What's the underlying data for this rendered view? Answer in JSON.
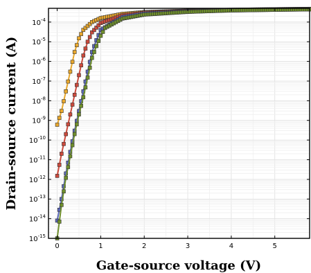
{
  "chart_data": {
    "type": "line",
    "title": "",
    "xlabel": "Gate-source voltage (V)",
    "ylabel": "Drain-source current (A)",
    "xlim": [
      -0.2,
      5.8
    ],
    "ylim": [
      1e-15,
      0.0005
    ],
    "yscale": "log",
    "grid": true,
    "legend": "none",
    "x_ticks": [
      "0",
      "1",
      "2",
      "3",
      "4",
      "5"
    ],
    "y_ticks": [
      {
        "base": "10",
        "exp": "-15"
      },
      {
        "base": "10",
        "exp": "-14"
      },
      {
        "base": "10",
        "exp": "-13"
      },
      {
        "base": "10",
        "exp": "-12"
      },
      {
        "base": "10",
        "exp": "-11"
      },
      {
        "base": "10",
        "exp": "-10"
      },
      {
        "base": "10",
        "exp": "-9"
      },
      {
        "base": "10",
        "exp": "-8"
      },
      {
        "base": "10",
        "exp": "-7"
      },
      {
        "base": "10",
        "exp": "-6"
      },
      {
        "base": "10",
        "exp": "-5"
      },
      {
        "base": "10",
        "exp": "-4"
      }
    ],
    "series": [
      {
        "color": "#e8a72c",
        "x": [
          0.0,
          0.1,
          0.2,
          0.3,
          0.4,
          0.5,
          0.6,
          0.8,
          1.0,
          1.5,
          2.0,
          3.0,
          4.0,
          5.0,
          5.8
        ],
        "y": [
          6e-10,
          3e-09,
          3e-08,
          3e-07,
          3e-06,
          1.5e-05,
          4e-05,
          0.0001,
          0.00016,
          0.00026,
          0.00032,
          0.00038,
          0.00042,
          0.00045,
          0.00047
        ]
      },
      {
        "color": "#cc4a3c",
        "x": [
          0.0,
          0.1,
          0.2,
          0.3,
          0.4,
          0.5,
          0.6,
          0.7,
          0.8,
          1.0,
          1.5,
          2.0,
          3.0,
          4.0,
          5.0,
          5.8
        ],
        "y": [
          1.5e-12,
          2e-11,
          2e-10,
          2e-09,
          2e-08,
          2e-07,
          2e-06,
          1e-05,
          3e-05,
          9e-05,
          0.00022,
          0.0003,
          0.00037,
          0.00041,
          0.00044,
          0.00046
        ]
      },
      {
        "color": "#5a66b8",
        "x": [
          0.0,
          0.1,
          0.2,
          0.3,
          0.4,
          0.5,
          0.6,
          0.7,
          0.8,
          0.9,
          1.0,
          1.5,
          2.0,
          3.0,
          4.0,
          5.0,
          5.8
        ],
        "y": [
          8e-15,
          1e-13,
          2e-12,
          2.5e-11,
          3e-10,
          3e-09,
          3e-08,
          3e-07,
          3e-06,
          1.2e-05,
          4e-05,
          0.00018,
          0.00027,
          0.00035,
          0.0004,
          0.00043,
          0.00045
        ]
      },
      {
        "color": "#6f8f2c",
        "x": [
          0.0,
          0.1,
          0.2,
          0.3,
          0.4,
          0.5,
          0.6,
          0.7,
          0.8,
          0.9,
          1.0,
          1.1,
          1.5,
          2.0,
          3.0,
          4.0,
          5.0,
          5.8
        ],
        "y": [
          1e-15,
          5e-14,
          1.2e-12,
          1.5e-11,
          2e-10,
          2e-09,
          1.5e-08,
          1.5e-07,
          1.5e-06,
          6e-06,
          2e-05,
          5e-05,
          0.00015,
          0.00024,
          0.00033,
          0.00039,
          0.00042,
          0.00044
        ]
      }
    ]
  }
}
